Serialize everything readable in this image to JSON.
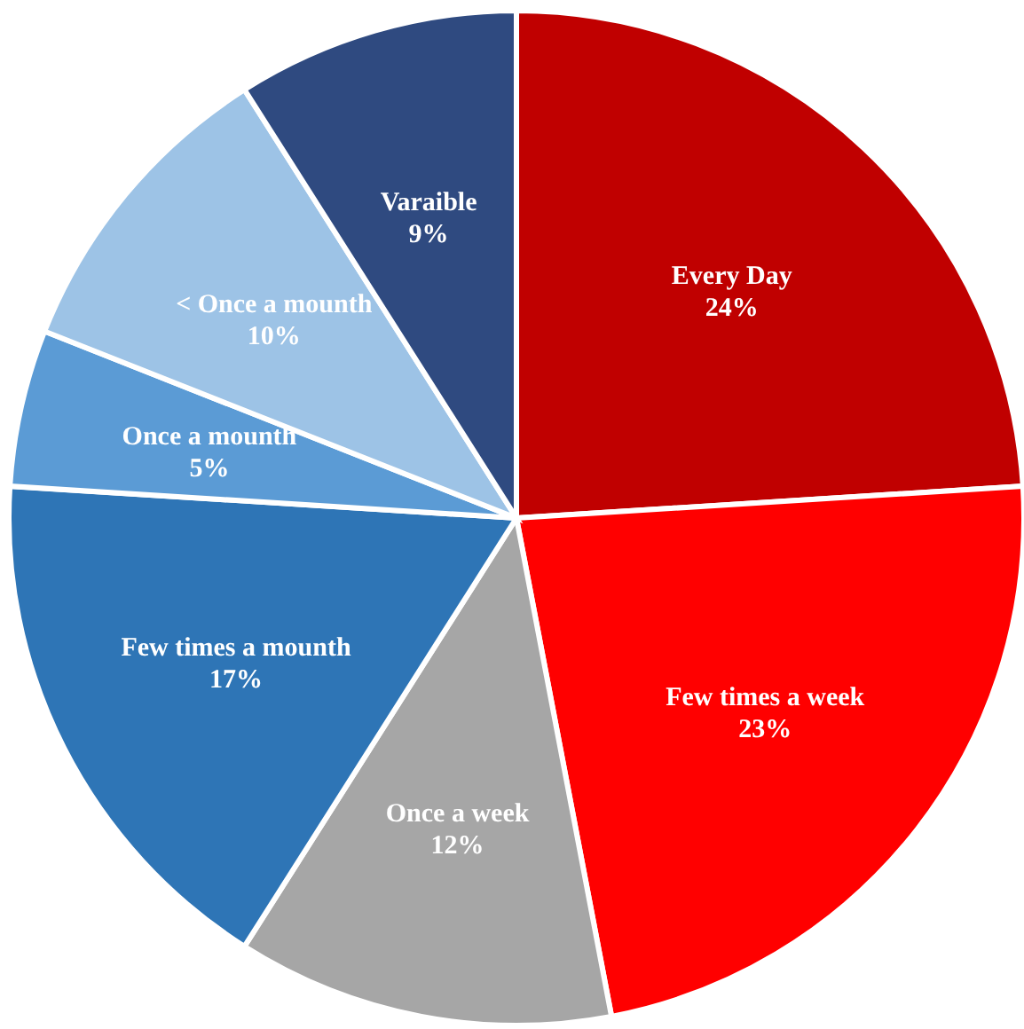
{
  "chart_data": {
    "type": "pie",
    "categories": [
      "Every Day",
      "Few times a week",
      "Once a week",
      "Few times a mounth",
      "Once a mounth",
      "< Once a mounth",
      "Varaible"
    ],
    "values": [
      24,
      23,
      12,
      17,
      5,
      10,
      9
    ],
    "colors": [
      "#c00000",
      "#ff0000",
      "#a6a6a6",
      "#2e75b6",
      "#5b9bd5",
      "#9dc3e6",
      "#2f4a80"
    ],
    "value_labels": [
      "24%",
      "23%",
      "12%",
      "17%",
      "5%",
      "10%",
      "9%"
    ],
    "legend": false
  }
}
